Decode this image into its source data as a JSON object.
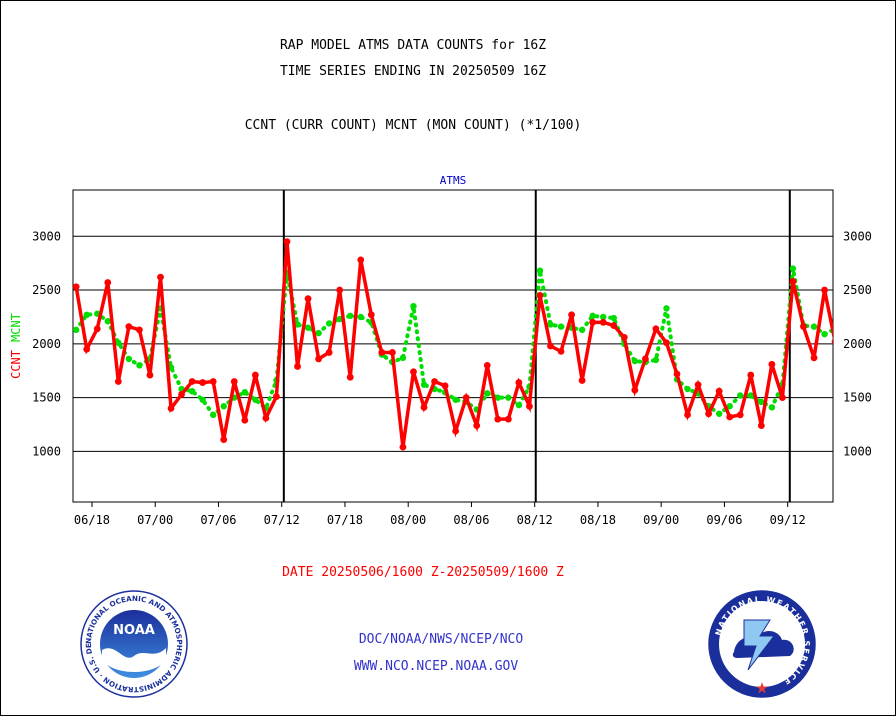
{
  "header": {
    "line1": "RAP MODEL ATMS DATA COUNTS for 16Z",
    "line2": "TIME SERIES ENDING IN 20250509 16Z",
    "line3": "CCNT (CURR COUNT) MCNT (MON COUNT) (*1/100)"
  },
  "footer": {
    "date_range": "DATE 20250506/1600 Z-20250509/1600 Z",
    "org": "DOC/NOAA/NWS/NCEP/NCO",
    "url": "WWW.NCO.NCEP.NOAA.GOV"
  },
  "logos": {
    "noaa_text": "NOAA",
    "noaa_ring": "NATIONAL OCEANIC AND ATMOSPHERIC ADMINISTRATION · U.S. DEPARTMENT OF COMMERCE ·",
    "nws_ring": "NATIONAL WEATHER SERVICE"
  },
  "colors": {
    "ccnt": "#ff0000",
    "mcnt": "#00dd00",
    "title_blue": "#0000cc",
    "footer_blue": "#3333cc"
  },
  "chart_data": {
    "type": "line",
    "title": "ATMS",
    "ylabel_left": [
      "CCNT",
      "MCNT"
    ],
    "ylim": [
      530,
      3430
    ],
    "yticks": [
      1000,
      1500,
      2000,
      2500,
      3000
    ],
    "x_ticks": [
      {
        "x": 1.5,
        "label": "06/18"
      },
      {
        "x": 7.5,
        "label": "07/00"
      },
      {
        "x": 13.5,
        "label": "07/06"
      },
      {
        "x": 19.5,
        "label": "07/12"
      },
      {
        "x": 25.5,
        "label": "07/18"
      },
      {
        "x": 31.5,
        "label": "08/00"
      },
      {
        "x": 37.5,
        "label": "08/06"
      },
      {
        "x": 43.5,
        "label": "08/12"
      },
      {
        "x": 49.5,
        "label": "08/18"
      },
      {
        "x": 55.5,
        "label": "09/00"
      },
      {
        "x": 61.5,
        "label": "09/06"
      },
      {
        "x": 67.5,
        "label": "09/12"
      }
    ],
    "xlim": [
      -0.3,
      71.8
    ],
    "day_boundaries": [
      19.7,
      43.6,
      67.7
    ],
    "grid": "horizontal",
    "series": [
      {
        "name": "CCNT",
        "values": [
          2530,
          1950,
          2140,
          2570,
          1650,
          2160,
          2130,
          1710,
          2620,
          1400,
          1530,
          1650,
          1640,
          1650,
          1110,
          1650,
          1290,
          1710,
          1310,
          1510,
          2950,
          1790,
          2420,
          1860,
          1920,
          2500,
          1690,
          2780,
          2270,
          1920,
          1920,
          1040,
          1740,
          1410,
          1650,
          1610,
          1190,
          1500,
          1240,
          1800,
          1300,
          1300,
          1640,
          1420,
          2450,
          1980,
          1930,
          2270,
          1660,
          2200,
          2200,
          2170,
          2060,
          1570,
          1860,
          2140,
          2010,
          1720,
          1340,
          1620,
          1350,
          1560,
          1320,
          1340,
          1710,
          1240,
          1810,
          1500,
          2580,
          2160,
          1870,
          2500,
          2020
        ]
      },
      {
        "name": "MCNT",
        "values": [
          2130,
          2270,
          2280,
          2210,
          2010,
          1860,
          1800,
          1860,
          2330,
          1780,
          1580,
          1560,
          1480,
          1340,
          1420,
          1500,
          1550,
          1480,
          1400,
          1660,
          2660,
          2180,
          2150,
          2100,
          2190,
          2230,
          2260,
          2250,
          2200,
          1900,
          1830,
          1870,
          2350,
          1620,
          1580,
          1550,
          1480,
          1460,
          1390,
          1540,
          1500,
          1500,
          1430,
          1600,
          2680,
          2180,
          2160,
          2150,
          2130,
          2260,
          2250,
          2240,
          2000,
          1840,
          1830,
          1850,
          2330,
          1670,
          1580,
          1540,
          1420,
          1350,
          1420,
          1520,
          1520,
          1460,
          1410,
          1620,
          2700,
          2170,
          2160,
          2090,
          2140
        ]
      }
    ]
  }
}
